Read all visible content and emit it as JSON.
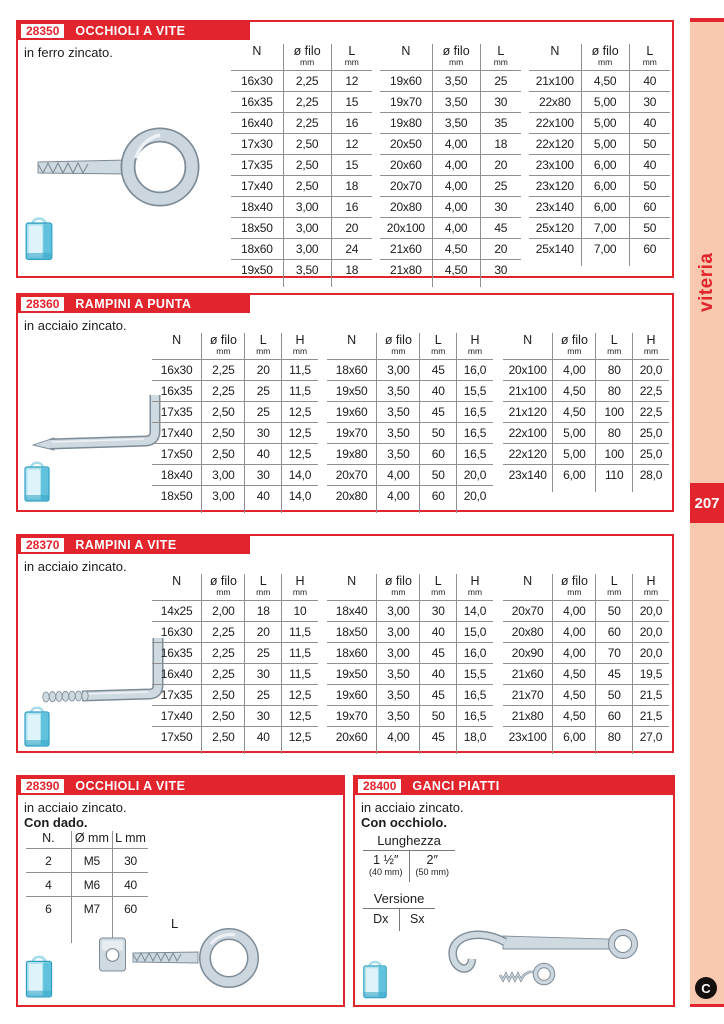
{
  "page": {
    "number": "207",
    "category_label": "viteria",
    "logo_letter": "C"
  },
  "colors": {
    "accent_red": "#e2242c",
    "sidebar_pink": "#f8c9ae",
    "table_line": "#8f8f8f"
  },
  "sections": [
    {
      "code": "28350",
      "title": "OCCHIOLI A VITE",
      "subtitle": "in ferro zincato.",
      "headers": [
        {
          "t": "N",
          "s": ""
        },
        {
          "t": "ø filo",
          "s": "mm"
        },
        {
          "t": "L",
          "s": "mm"
        }
      ],
      "tables": [
        {
          "rows": [
            [
              "16x30",
              "2,25",
              "12"
            ],
            [
              "16x35",
              "2,25",
              "15"
            ],
            [
              "16x40",
              "2,25",
              "16"
            ],
            [
              "17x30",
              "2,50",
              "12"
            ],
            [
              "17x35",
              "2,50",
              "15"
            ],
            [
              "17x40",
              "2,50",
              "18"
            ],
            [
              "18x40",
              "3,00",
              "16"
            ],
            [
              "18x50",
              "3,00",
              "20"
            ],
            [
              "18x60",
              "3,00",
              "24"
            ],
            [
              "19x50",
              "3,50",
              "18"
            ]
          ]
        },
        {
          "rows": [
            [
              "19x60",
              "3,50",
              "25"
            ],
            [
              "19x70",
              "3,50",
              "30"
            ],
            [
              "19x80",
              "3,50",
              "35"
            ],
            [
              "20x50",
              "4,00",
              "18"
            ],
            [
              "20x60",
              "4,00",
              "20"
            ],
            [
              "20x70",
              "4,00",
              "25"
            ],
            [
              "20x80",
              "4,00",
              "30"
            ],
            [
              "20x100",
              "4,00",
              "45"
            ],
            [
              "21x60",
              "4,50",
              "20"
            ],
            [
              "21x80",
              "4,50",
              "30"
            ]
          ]
        },
        {
          "rows": [
            [
              "21x100",
              "4,50",
              "40"
            ],
            [
              "22x80",
              "5,00",
              "30"
            ],
            [
              "22x100",
              "5,00",
              "40"
            ],
            [
              "22x120",
              "5,00",
              "50"
            ],
            [
              "23x100",
              "6,00",
              "40"
            ],
            [
              "23x120",
              "6,00",
              "50"
            ],
            [
              "23x140",
              "6,00",
              "60"
            ],
            [
              "25x120",
              "7,00",
              "50"
            ],
            [
              "25x140",
              "7,00",
              "60"
            ]
          ]
        }
      ]
    },
    {
      "code": "28360",
      "title": "RAMPINI A PUNTA",
      "subtitle": "in acciaio zincato.",
      "headers": [
        {
          "t": "N",
          "s": ""
        },
        {
          "t": "ø filo",
          "s": "mm"
        },
        {
          "t": "L",
          "s": "mm"
        },
        {
          "t": "H",
          "s": "mm"
        }
      ],
      "tables": [
        {
          "rows": [
            [
              "16x30",
              "2,25",
              "20",
              "11,5"
            ],
            [
              "16x35",
              "2,25",
              "25",
              "11,5"
            ],
            [
              "17x35",
              "2,50",
              "25",
              "12,5"
            ],
            [
              "17x40",
              "2,50",
              "30",
              "12,5"
            ],
            [
              "17x50",
              "2,50",
              "40",
              "12,5"
            ],
            [
              "18x40",
              "3,00",
              "30",
              "14,0"
            ],
            [
              "18x50",
              "3,00",
              "40",
              "14,0"
            ]
          ]
        },
        {
          "rows": [
            [
              "18x60",
              "3,00",
              "45",
              "16,0"
            ],
            [
              "19x50",
              "3,50",
              "40",
              "15,5"
            ],
            [
              "19x60",
              "3,50",
              "45",
              "16,5"
            ],
            [
              "19x70",
              "3,50",
              "50",
              "16,5"
            ],
            [
              "19x80",
              "3,50",
              "60",
              "16,5"
            ],
            [
              "20x70",
              "4,00",
              "50",
              "20,0"
            ],
            [
              "20x80",
              "4,00",
              "60",
              "20,0"
            ]
          ]
        },
        {
          "rows": [
            [
              "20x100",
              "4,00",
              "80",
              "20,0"
            ],
            [
              "21x100",
              "4,50",
              "80",
              "22,5"
            ],
            [
              "21x120",
              "4,50",
              "100",
              "22,5"
            ],
            [
              "22x100",
              "5,00",
              "80",
              "25,0"
            ],
            [
              "22x120",
              "5,00",
              "100",
              "25,0"
            ],
            [
              "23x140",
              "6,00",
              "110",
              "28,0"
            ]
          ]
        }
      ]
    },
    {
      "code": "28370",
      "title": "RAMPINI A VITE",
      "subtitle": "in acciaio zincato.",
      "headers": [
        {
          "t": "N",
          "s": ""
        },
        {
          "t": "ø filo",
          "s": "mm"
        },
        {
          "t": "L",
          "s": "mm"
        },
        {
          "t": "H",
          "s": "mm"
        }
      ],
      "tables": [
        {
          "rows": [
            [
              "14x25",
              "2,00",
              "18",
              "10"
            ],
            [
              "16x30",
              "2,25",
              "20",
              "11,5"
            ],
            [
              "16x35",
              "2,25",
              "25",
              "11,5"
            ],
            [
              "16x40",
              "2,25",
              "30",
              "11,5"
            ],
            [
              "17x35",
              "2,50",
              "25",
              "12,5"
            ],
            [
              "17x40",
              "2,50",
              "30",
              "12,5"
            ],
            [
              "17x50",
              "2,50",
              "40",
              "12,5"
            ]
          ]
        },
        {
          "rows": [
            [
              "18x40",
              "3,00",
              "30",
              "14,0"
            ],
            [
              "18x50",
              "3,00",
              "40",
              "15,0"
            ],
            [
              "18x60",
              "3,00",
              "45",
              "16,0"
            ],
            [
              "19x50",
              "3,50",
              "40",
              "15,5"
            ],
            [
              "19x60",
              "3,50",
              "45",
              "16,5"
            ],
            [
              "19x70",
              "3,50",
              "50",
              "16,5"
            ],
            [
              "20x60",
              "4,00",
              "45",
              "18,0"
            ]
          ]
        },
        {
          "rows": [
            [
              "20x70",
              "4,00",
              "50",
              "20,0"
            ],
            [
              "20x80",
              "4,00",
              "60",
              "20,0"
            ],
            [
              "20x90",
              "4,00",
              "70",
              "20,0"
            ],
            [
              "21x60",
              "4,50",
              "45",
              "19,5"
            ],
            [
              "21x70",
              "4,50",
              "50",
              "21,5"
            ],
            [
              "21x80",
              "4,50",
              "60",
              "21,5"
            ],
            [
              "23x100",
              "6,00",
              "80",
              "27,0"
            ]
          ]
        }
      ]
    },
    {
      "code": "28390",
      "title": "OCCHIOLI A VITE",
      "subtitle": "in acciaio zincato.",
      "note": "Con dado.",
      "dim_label": "L",
      "headers": [
        {
          "t": "N.",
          "s": ""
        },
        {
          "t": "Ø mm",
          "s": ""
        },
        {
          "t": "L mm",
          "s": ""
        }
      ],
      "tables": [
        {
          "rows": [
            [
              "2",
              "M5",
              "30"
            ],
            [
              "4",
              "M6",
              "40"
            ],
            [
              "6",
              "M7",
              "60"
            ]
          ]
        }
      ]
    },
    {
      "code": "28400",
      "title": "GANCI PIATTI",
      "subtitle": "in acciaio zincato.",
      "note": "Con occhiolo.",
      "length_table": {
        "title": "Lunghezza",
        "options": [
          {
            "size": "1 ½″",
            "mm": "(40 mm)"
          },
          {
            "size": "2″",
            "mm": "(50 mm)"
          }
        ]
      },
      "version_table": {
        "title": "Versione",
        "options": [
          "Dx",
          "Sx"
        ]
      }
    }
  ]
}
